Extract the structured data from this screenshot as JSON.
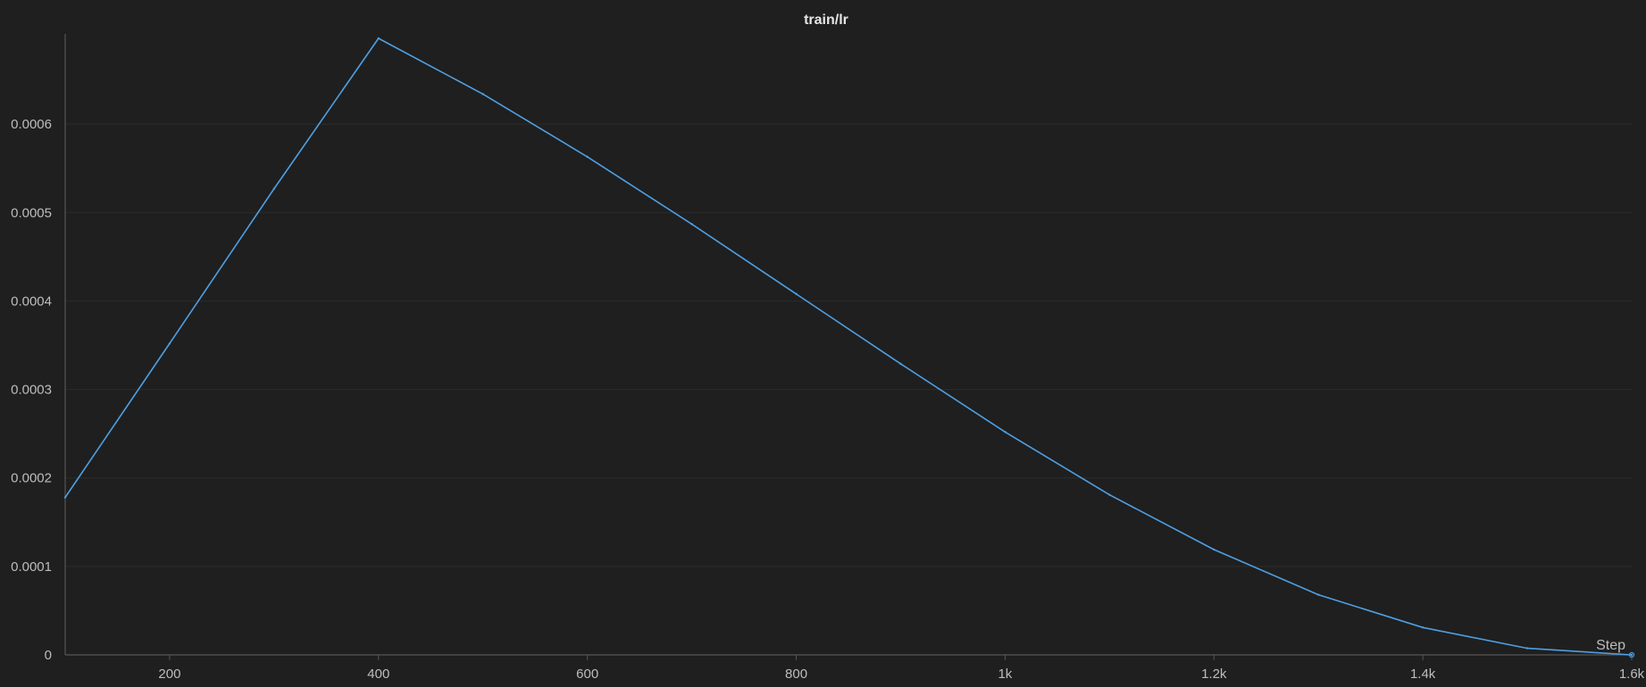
{
  "chart_data": {
    "type": "line",
    "title": "train/lr",
    "xlabel": "Step",
    "ylabel": "",
    "xlim": [
      100,
      1600
    ],
    "ylim": [
      0,
      0.0007
    ],
    "grid": "horizontal",
    "x_ticks": [
      {
        "value": 200,
        "label": "200"
      },
      {
        "value": 400,
        "label": "400"
      },
      {
        "value": 600,
        "label": "600"
      },
      {
        "value": 800,
        "label": "800"
      },
      {
        "value": 1000,
        "label": "1k"
      },
      {
        "value": 1200,
        "label": "1.2k"
      },
      {
        "value": 1400,
        "label": "1.4k"
      },
      {
        "value": 1600,
        "label": "1.6k"
      }
    ],
    "y_ticks": [
      {
        "value": 0,
        "label": "0"
      },
      {
        "value": 0.0001,
        "label": "0.0001"
      },
      {
        "value": 0.0002,
        "label": "0.0002"
      },
      {
        "value": 0.0003,
        "label": "0.0003"
      },
      {
        "value": 0.0004,
        "label": "0.0004"
      },
      {
        "value": 0.0005,
        "label": "0.0005"
      },
      {
        "value": 0.0006,
        "label": "0.0006"
      }
    ],
    "series": [
      {
        "color": "#4e9fe3",
        "x": [
          100,
          200,
          300,
          400,
          500,
          600,
          700,
          800,
          900,
          1000,
          1100,
          1200,
          1300,
          1400,
          1500,
          1600
        ],
        "y": [
          0.000178,
          0.000352,
          0.000527,
          0.000697,
          0.000634,
          0.000563,
          0.000487,
          0.000408,
          0.000329,
          0.000252,
          0.000181,
          0.000119,
          6.8e-05,
          3.1e-05,
          7.5e-06,
          0.0
        ]
      }
    ]
  }
}
